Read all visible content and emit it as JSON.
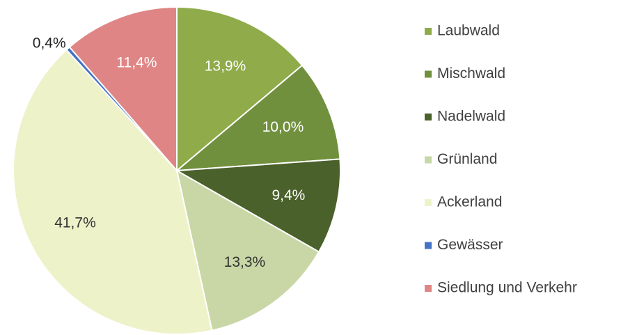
{
  "chart_data": {
    "type": "pie",
    "categories": [
      "Laubwald",
      "Mischwald",
      "Nadelwald",
      "Grünland",
      "Ackerland",
      "Gewässer",
      "Siedlung und Verkehr"
    ],
    "values": [
      13.9,
      10.0,
      9.4,
      13.3,
      41.7,
      0.4,
      11.4
    ],
    "value_labels": [
      "13,9%",
      "10,0%",
      "9,4%",
      "13,3%",
      "41,7%",
      "0,4%",
      "11,4%"
    ],
    "colors": [
      "#8fab4a",
      "#71903e",
      "#4b612b",
      "#c8d7a5",
      "#eef2c9",
      "#4472c4",
      "#e08585"
    ],
    "legend": "right"
  }
}
